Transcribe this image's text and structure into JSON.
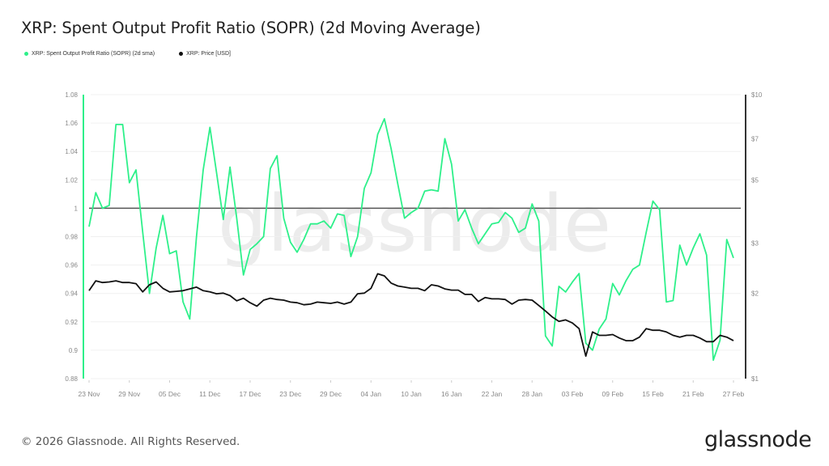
{
  "title": "XRP: Spent Output Profit Ratio (SOPR) (2d Moving Average)",
  "footer": "© 2026 Glassnode. All Rights Reserved.",
  "logo_text": "glassnode",
  "watermark": "glassnode",
  "chart_data": {
    "type": "line",
    "title": "XRP: Spent Output Profit Ratio (SOPR) (2d Moving Average)",
    "legend_placement": "top-left",
    "grid": true,
    "x": [
      "23 Nov",
      "24 Nov",
      "25 Nov",
      "26 Nov",
      "27 Nov",
      "28 Nov",
      "29 Nov",
      "30 Nov",
      "01 Dec",
      "02 Dec",
      "03 Dec",
      "04 Dec",
      "05 Dec",
      "06 Dec",
      "07 Dec",
      "08 Dec",
      "09 Dec",
      "10 Dec",
      "11 Dec",
      "12 Dec",
      "13 Dec",
      "14 Dec",
      "15 Dec",
      "16 Dec",
      "17 Dec",
      "18 Dec",
      "19 Dec",
      "20 Dec",
      "21 Dec",
      "22 Dec",
      "23 Dec",
      "24 Dec",
      "25 Dec",
      "26 Dec",
      "27 Dec",
      "28 Dec",
      "29 Dec",
      "30 Dec",
      "31 Dec",
      "01 Jan",
      "02 Jan",
      "03 Jan",
      "04 Jan",
      "05 Jan",
      "06 Jan",
      "07 Jan",
      "08 Jan",
      "09 Jan",
      "10 Jan",
      "11 Jan",
      "12 Jan",
      "13 Jan",
      "14 Jan",
      "15 Jan",
      "16 Jan",
      "17 Jan",
      "18 Jan",
      "19 Jan",
      "20 Jan",
      "21 Jan",
      "22 Jan",
      "23 Jan",
      "24 Jan",
      "25 Jan",
      "26 Jan",
      "27 Jan",
      "28 Jan",
      "29 Jan",
      "30 Jan",
      "31 Jan",
      "01 Feb",
      "02 Feb",
      "03 Feb",
      "04 Feb",
      "05 Feb",
      "06 Feb",
      "07 Feb",
      "08 Feb",
      "09 Feb",
      "10 Feb",
      "11 Feb",
      "12 Feb",
      "13 Feb",
      "14 Feb",
      "15 Feb",
      "16 Feb",
      "17 Feb",
      "18 Feb",
      "19 Feb",
      "20 Feb",
      "21 Feb",
      "22 Feb",
      "23 Feb",
      "24 Feb",
      "25 Feb",
      "26 Feb",
      "27 Feb"
    ],
    "x_tick_labels": [
      "23 Nov",
      "29 Nov",
      "05 Dec",
      "11 Dec",
      "17 Dec",
      "23 Dec",
      "29 Dec",
      "04 Jan",
      "10 Jan",
      "16 Jan",
      "22 Jan",
      "28 Jan",
      "03 Feb",
      "09 Feb",
      "15 Feb",
      "21 Feb",
      "27 Feb"
    ],
    "y_left": {
      "ylim": [
        0.88,
        1.08
      ],
      "tick_labels": [
        "0.88",
        "0.9",
        "0.92",
        "0.94",
        "0.96",
        "0.98",
        "1",
        "1.02",
        "1.04",
        "1.06",
        "1.08"
      ],
      "ticks": [
        0.88,
        0.9,
        0.92,
        0.94,
        0.96,
        0.98,
        1,
        1.02,
        1.04,
        1.06,
        1.08
      ]
    },
    "y_right": {
      "scale": "log",
      "ylim": [
        1,
        10
      ],
      "tick_labels": [
        "$1",
        "$2",
        "$3",
        "$5",
        "$7",
        "$10"
      ],
      "ticks": [
        1,
        2,
        3,
        5,
        7,
        10
      ]
    },
    "reference_line": {
      "value": 1,
      "color": "#555555"
    },
    "series": [
      {
        "name": "XRP: Spent Output Profit Ratio (SOPR) (2d sma)",
        "axis": "left",
        "color": "#2ef08a",
        "values": [
          0.987,
          1.011,
          1.0,
          1.002,
          1.059,
          1.059,
          1.018,
          1.027,
          0.983,
          0.94,
          0.972,
          0.995,
          0.968,
          0.97,
          0.934,
          0.922,
          0.98,
          1.027,
          1.057,
          1.025,
          0.992,
          1.029,
          0.993,
          0.953,
          0.971,
          0.975,
          0.98,
          1.028,
          1.037,
          0.993,
          0.976,
          0.969,
          0.978,
          0.989,
          0.989,
          0.991,
          0.986,
          0.996,
          0.995,
          0.966,
          0.98,
          1.014,
          1.025,
          1.052,
          1.063,
          1.042,
          1.017,
          0.993,
          0.997,
          1.0,
          1.012,
          1.013,
          1.012,
          1.049,
          1.031,
          0.991,
          0.999,
          0.986,
          0.975,
          0.982,
          0.989,
          0.99,
          0.997,
          0.993,
          0.983,
          0.986,
          1.003,
          0.991,
          0.91,
          0.903,
          0.945,
          0.941,
          0.948,
          0.954,
          0.905,
          0.9,
          0.915,
          0.922,
          0.947,
          0.939,
          0.949,
          0.957,
          0.96,
          0.983,
          1.005,
          0.999,
          0.934,
          0.935,
          0.974,
          0.96,
          0.972,
          0.982,
          0.967,
          0.893,
          0.907,
          0.978,
          0.965
        ]
      },
      {
        "name": "XRP: Price [USD]",
        "axis": "right",
        "color": "#111111",
        "values": [
          2.04,
          2.21,
          2.18,
          2.19,
          2.21,
          2.18,
          2.18,
          2.16,
          2.02,
          2.14,
          2.19,
          2.08,
          2.02,
          2.03,
          2.04,
          2.07,
          2.1,
          2.04,
          2.02,
          1.99,
          2.0,
          1.96,
          1.88,
          1.92,
          1.85,
          1.8,
          1.89,
          1.92,
          1.9,
          1.89,
          1.86,
          1.85,
          1.82,
          1.83,
          1.86,
          1.85,
          1.84,
          1.86,
          1.83,
          1.86,
          1.99,
          2.0,
          2.08,
          2.34,
          2.3,
          2.17,
          2.12,
          2.1,
          2.08,
          2.08,
          2.04,
          2.14,
          2.12,
          2.07,
          2.05,
          2.05,
          1.98,
          1.98,
          1.87,
          1.93,
          1.91,
          1.91,
          1.9,
          1.83,
          1.89,
          1.9,
          1.89,
          1.81,
          1.73,
          1.65,
          1.59,
          1.61,
          1.57,
          1.5,
          1.2,
          1.46,
          1.42,
          1.42,
          1.43,
          1.39,
          1.36,
          1.36,
          1.4,
          1.5,
          1.48,
          1.48,
          1.46,
          1.42,
          1.4,
          1.42,
          1.42,
          1.39,
          1.35,
          1.35,
          1.42,
          1.4,
          1.36
        ]
      }
    ]
  }
}
